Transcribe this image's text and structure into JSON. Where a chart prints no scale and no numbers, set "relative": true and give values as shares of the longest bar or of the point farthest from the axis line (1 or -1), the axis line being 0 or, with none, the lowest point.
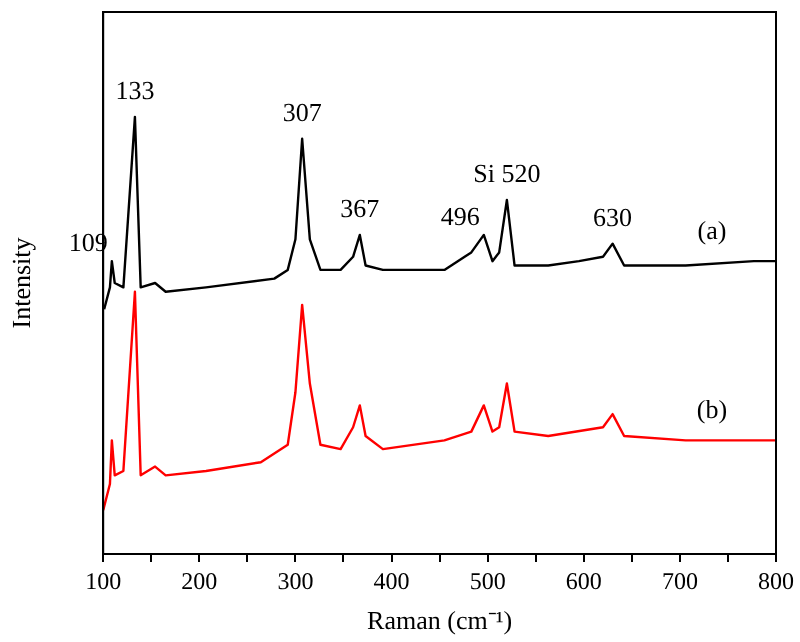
{
  "chart_data": {
    "type": "line",
    "relative": true,
    "xlabel": "Raman (cm⁻¹)",
    "ylabel": "Intensity",
    "xlim": [
      100,
      800
    ],
    "xticks": [
      100,
      {
        "value": 150,
        "label": null
      },
      200,
      {
        "value": 250,
        "label": null
      },
      300,
      {
        "value": 350,
        "label": null
      },
      400,
      {
        "value": 450,
        "label": null
      },
      500,
      {
        "value": 550,
        "label": null
      },
      600,
      {
        "value": 650,
        "label": null
      },
      700,
      {
        "value": 750,
        "label": null
      },
      800
    ],
    "legend": false,
    "grid": false,
    "marker": "none",
    "line_style": "solid",
    "series": [
      {
        "name": "(a)",
        "color": "#000000",
        "x": [
          101,
          107,
          109,
          112,
          121,
          133,
          139,
          154,
          165,
          207,
          278,
          292,
          300,
          307,
          315,
          326,
          347,
          360,
          367,
          373,
          391,
          455,
          483,
          496,
          505,
          512,
          520,
          528,
          563,
          595,
          620,
          630,
          642,
          706,
          777,
          799
        ],
        "values": [
          0.56,
          0.61,
          0.67,
          0.62,
          0.61,
          1,
          0.61,
          0.62,
          0.6,
          0.61,
          0.63,
          0.65,
          0.72,
          0.95,
          0.72,
          0.65,
          0.65,
          0.68,
          0.73,
          0.66,
          0.65,
          0.65,
          0.69,
          0.73,
          0.67,
          0.69,
          0.81,
          0.66,
          0.66,
          0.67,
          0.68,
          0.71,
          0.66,
          0.66,
          0.67,
          0.67
        ]
      },
      {
        "name": "(b)",
        "color": "#ff0000",
        "x": [
          100,
          107,
          109,
          112,
          121,
          133,
          139,
          154,
          165,
          207,
          264,
          278,
          292,
          300,
          307,
          315,
          326,
          347,
          360,
          367,
          373,
          391,
          455,
          483,
          496,
          505,
          512,
          520,
          528,
          563,
          620,
          630,
          642,
          706,
          777,
          799
        ],
        "values": [
          0.1,
          0.16,
          0.26,
          0.18,
          0.19,
          0.6,
          0.18,
          0.2,
          0.18,
          0.19,
          0.21,
          0.23,
          0.25,
          0.37,
          0.57,
          0.39,
          0.25,
          0.24,
          0.29,
          0.34,
          0.27,
          0.24,
          0.26,
          0.28,
          0.34,
          0.28,
          0.29,
          0.39,
          0.28,
          0.27,
          0.29,
          0.32,
          0.27,
          0.26,
          0.26,
          0.26
        ]
      }
    ],
    "annotations": [
      {
        "text": "109",
        "x": 109,
        "y": 0.67
      },
      {
        "text": "133",
        "x": 133,
        "y": 1
      },
      {
        "text": "307",
        "x": 307,
        "y": 0.95
      },
      {
        "text": "367",
        "x": 367,
        "y": 0.73
      },
      {
        "text": "496",
        "x": 496,
        "y": 0.73
      },
      {
        "text": "Si 520",
        "x": 520,
        "y": 0.81
      },
      {
        "text": "630",
        "x": 630,
        "y": 0.71
      }
    ]
  }
}
